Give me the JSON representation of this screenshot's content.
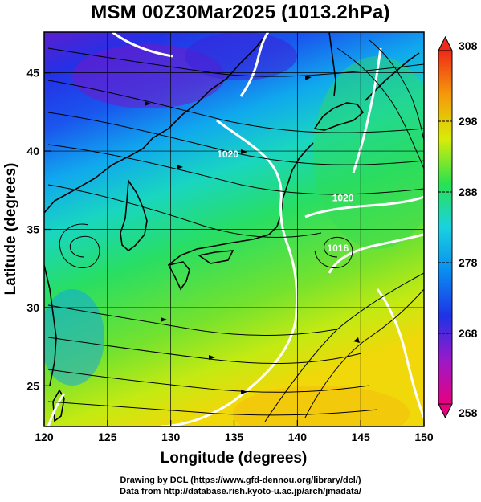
{
  "title": "MSM 00Z30Mar2025 (1013.2hPa)",
  "map": {
    "xlabel": "Longitude (degrees)",
    "ylabel": "Latitude  (degrees)",
    "xlim": [
      120,
      150
    ],
    "ylim": [
      22.4,
      47.6
    ],
    "xticks": [
      120,
      125,
      130,
      135,
      140,
      145,
      150
    ],
    "yticks": [
      25,
      30,
      35,
      40,
      45
    ],
    "grid": true,
    "isobar_labels": [
      {
        "text": "1020",
        "lon": 134.5,
        "lat": 39.6
      },
      {
        "text": "1020",
        "lon": 143.6,
        "lat": 36.8
      },
      {
        "text": "1016",
        "lon": 143.2,
        "lat": 33.6
      }
    ],
    "colors": {
      "isobars": "#ffffff",
      "streamlines": "#000000",
      "coast": "#000000"
    }
  },
  "colorbar": {
    "min": 258,
    "max": 308,
    "labels": [
      308,
      298,
      288,
      278,
      268,
      258
    ],
    "stops": [
      "#e8007f",
      "#9a19c9",
      "#1e33e6",
      "#0a8cf0",
      "#19d2e0",
      "#2ae24f",
      "#d8ec08",
      "#f59a0a",
      "#ee2a18"
    ]
  },
  "credits": {
    "line1": "Drawing by DCL (https://www.gfd-dennou.org/library/dcl/)",
    "line2": "Data from http://database.rish.kyoto-u.ac.jp/arch/jmadata/"
  }
}
